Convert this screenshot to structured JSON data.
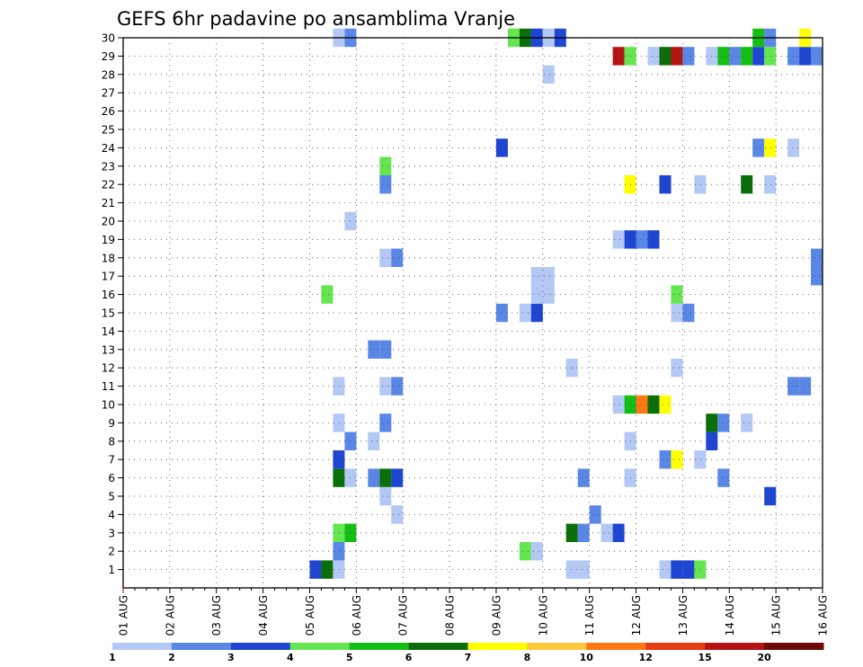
{
  "chart_data": {
    "type": "heatmap",
    "title": "GEFS 6hr padavine po ansamblima Vranje",
    "xlabel": "",
    "ylabel": "",
    "x_tick_labels": [
      "01 AUG",
      "02 AUG",
      "03 AUG",
      "04 AUG",
      "05 AUG",
      "06 AUG",
      "07 AUG",
      "08 AUG",
      "09 AUG",
      "10 AUG",
      "11 AUG",
      "12 AUG",
      "13 AUG",
      "14 AUG",
      "15 AUG",
      "16 AUG"
    ],
    "x_range_days": [
      1,
      16
    ],
    "step_hours": 6,
    "y_tick_labels": [
      "1",
      "2",
      "3",
      "4",
      "5",
      "6",
      "7",
      "8",
      "9",
      "10",
      "11",
      "12",
      "13",
      "14",
      "15",
      "16",
      "17",
      "18",
      "19",
      "20",
      "21",
      "22",
      "23",
      "24",
      "25",
      "26",
      "27",
      "28",
      "29",
      "30"
    ],
    "y_range": [
      0,
      30
    ],
    "grid": true,
    "colorbar": {
      "placement": "bottom",
      "labels": [
        "1",
        "2",
        "3",
        "4",
        "5",
        "6",
        "7",
        "8",
        "10",
        "12",
        "15",
        "20"
      ],
      "colors": [
        "#b4c8f5",
        "#5a87e6",
        "#1e46d2",
        "#64e650",
        "#14be14",
        "#0a6e0a",
        "#ffff00",
        "#ffc83c",
        "#ff7814",
        "#e63c14",
        "#b41414",
        "#6e0a0a"
      ]
    },
    "cells": [
      {
        "member": 1,
        "day": 5.0,
        "v": 3.5
      },
      {
        "member": 1,
        "day": 5.25,
        "v": 6.5
      },
      {
        "member": 1,
        "day": 5.5,
        "v": 1.5
      },
      {
        "member": 1,
        "day": 10.5,
        "v": 1.5
      },
      {
        "member": 1,
        "day": 10.75,
        "v": 1.5
      },
      {
        "member": 1,
        "day": 12.5,
        "v": 1.5
      },
      {
        "member": 1,
        "day": 12.75,
        "v": 3.5
      },
      {
        "member": 1,
        "day": 13.0,
        "v": 3.5
      },
      {
        "member": 1,
        "day": 13.25,
        "v": 4.5
      },
      {
        "member": 2,
        "day": 5.5,
        "v": 2.5
      },
      {
        "member": 2,
        "day": 9.5,
        "v": 4.5
      },
      {
        "member": 2,
        "day": 9.75,
        "v": 1.5
      },
      {
        "member": 3,
        "day": 5.5,
        "v": 4.5
      },
      {
        "member": 3,
        "day": 5.75,
        "v": 5.5
      },
      {
        "member": 3,
        "day": 10.5,
        "v": 6.5
      },
      {
        "member": 3,
        "day": 10.75,
        "v": 2.5
      },
      {
        "member": 3,
        "day": 11.25,
        "v": 1.5
      },
      {
        "member": 3,
        "day": 11.5,
        "v": 3.5
      },
      {
        "member": 4,
        "day": 6.75,
        "v": 1.5
      },
      {
        "member": 4,
        "day": 11.0,
        "v": 2.5
      },
      {
        "member": 5,
        "day": 6.5,
        "v": 1.5
      },
      {
        "member": 5,
        "day": 14.75,
        "v": 3.5
      },
      {
        "member": 6,
        "day": 5.5,
        "v": 6.5
      },
      {
        "member": 6,
        "day": 5.75,
        "v": 1.5
      },
      {
        "member": 6,
        "day": 6.25,
        "v": 2.5
      },
      {
        "member": 6,
        "day": 6.5,
        "v": 6.5
      },
      {
        "member": 6,
        "day": 6.75,
        "v": 3.5
      },
      {
        "member": 6,
        "day": 10.75,
        "v": 2.5
      },
      {
        "member": 6,
        "day": 11.75,
        "v": 1.5
      },
      {
        "member": 6,
        "day": 13.75,
        "v": 2.5
      },
      {
        "member": 7,
        "day": 5.5,
        "v": 3.5
      },
      {
        "member": 7,
        "day": 12.5,
        "v": 2.5
      },
      {
        "member": 7,
        "day": 12.75,
        "v": 7.5
      },
      {
        "member": 7,
        "day": 13.25,
        "v": 1.5
      },
      {
        "member": 8,
        "day": 5.75,
        "v": 2.5
      },
      {
        "member": 8,
        "day": 6.25,
        "v": 1.5
      },
      {
        "member": 8,
        "day": 11.75,
        "v": 1.5
      },
      {
        "member": 8,
        "day": 13.5,
        "v": 3.5
      },
      {
        "member": 9,
        "day": 5.5,
        "v": 1.5
      },
      {
        "member": 9,
        "day": 6.5,
        "v": 2.5
      },
      {
        "member": 9,
        "day": 13.5,
        "v": 6.5
      },
      {
        "member": 9,
        "day": 13.75,
        "v": 2.5
      },
      {
        "member": 9,
        "day": 14.25,
        "v": 1.5
      },
      {
        "member": 10,
        "day": 11.5,
        "v": 1.5
      },
      {
        "member": 10,
        "day": 11.75,
        "v": 5.5
      },
      {
        "member": 10,
        "day": 12.0,
        "v": 11
      },
      {
        "member": 10,
        "day": 12.25,
        "v": 6.5
      },
      {
        "member": 10,
        "day": 12.5,
        "v": 7.5
      },
      {
        "member": 11,
        "day": 5.5,
        "v": 1.5
      },
      {
        "member": 11,
        "day": 6.5,
        "v": 1.5
      },
      {
        "member": 11,
        "day": 6.75,
        "v": 2.5
      },
      {
        "member": 11,
        "day": 15.25,
        "v": 2.5
      },
      {
        "member": 11,
        "day": 15.5,
        "v": 2.5
      },
      {
        "member": 12,
        "day": 10.5,
        "v": 1.5
      },
      {
        "member": 12,
        "day": 12.75,
        "v": 1.5
      },
      {
        "member": 13,
        "day": 6.25,
        "v": 2.5
      },
      {
        "member": 13,
        "day": 6.5,
        "v": 2.5
      },
      {
        "member": 15,
        "day": 9.0,
        "v": 2.5
      },
      {
        "member": 15,
        "day": 9.5,
        "v": 1.5
      },
      {
        "member": 15,
        "day": 9.75,
        "v": 3.5
      },
      {
        "member": 15,
        "day": 12.75,
        "v": 1.5
      },
      {
        "member": 15,
        "day": 13.0,
        "v": 2.5
      },
      {
        "member": 16,
        "day": 5.25,
        "v": 4.5
      },
      {
        "member": 16,
        "day": 9.75,
        "v": 1.5
      },
      {
        "member": 16,
        "day": 10.0,
        "v": 1.5
      },
      {
        "member": 16,
        "day": 12.75,
        "v": 4.5
      },
      {
        "member": 17,
        "day": 9.75,
        "v": 1.5
      },
      {
        "member": 17,
        "day": 10.0,
        "v": 1.5
      },
      {
        "member": 17,
        "day": 15.75,
        "v": 2.5
      },
      {
        "member": 18,
        "day": 6.5,
        "v": 1.5
      },
      {
        "member": 18,
        "day": 6.75,
        "v": 2.5
      },
      {
        "member": 18,
        "day": 15.75,
        "v": 2.5
      },
      {
        "member": 19,
        "day": 11.5,
        "v": 1.5
      },
      {
        "member": 19,
        "day": 11.75,
        "v": 3.5
      },
      {
        "member": 19,
        "day": 12.0,
        "v": 2.5
      },
      {
        "member": 19,
        "day": 12.25,
        "v": 3.5
      },
      {
        "member": 20,
        "day": 5.75,
        "v": 1.5
      },
      {
        "member": 22,
        "day": 6.5,
        "v": 2.5
      },
      {
        "member": 22,
        "day": 11.75,
        "v": 7.5
      },
      {
        "member": 22,
        "day": 12.5,
        "v": 3.5
      },
      {
        "member": 22,
        "day": 13.25,
        "v": 1.5
      },
      {
        "member": 22,
        "day": 14.25,
        "v": 6.5
      },
      {
        "member": 22,
        "day": 14.75,
        "v": 1.5
      },
      {
        "member": 23,
        "day": 6.5,
        "v": 4.5
      },
      {
        "member": 24,
        "day": 9.0,
        "v": 3.5
      },
      {
        "member": 24,
        "day": 14.5,
        "v": 2.5
      },
      {
        "member": 24,
        "day": 14.75,
        "v": 7.5
      },
      {
        "member": 24,
        "day": 15.25,
        "v": 1.5
      },
      {
        "member": 28,
        "day": 10.0,
        "v": 1.5
      },
      {
        "member": 29,
        "day": 11.5,
        "v": 17
      },
      {
        "member": 29,
        "day": 11.75,
        "v": 4.5
      },
      {
        "member": 29,
        "day": 12.25,
        "v": 1.5
      },
      {
        "member": 29,
        "day": 12.5,
        "v": 6.5
      },
      {
        "member": 29,
        "day": 12.75,
        "v": 17
      },
      {
        "member": 29,
        "day": 13.0,
        "v": 2.5
      },
      {
        "member": 29,
        "day": 13.5,
        "v": 1.5
      },
      {
        "member": 29,
        "day": 13.75,
        "v": 5.5
      },
      {
        "member": 29,
        "day": 14.0,
        "v": 2.5
      },
      {
        "member": 29,
        "day": 14.25,
        "v": 5.5
      },
      {
        "member": 29,
        "day": 14.5,
        "v": 3.5
      },
      {
        "member": 29,
        "day": 14.75,
        "v": 4.5
      },
      {
        "member": 29,
        "day": 15.25,
        "v": 2.5
      },
      {
        "member": 29,
        "day": 15.5,
        "v": 3.5
      },
      {
        "member": 29,
        "day": 15.75,
        "v": 2.5
      },
      {
        "member": 30,
        "day": 5.5,
        "v": 1.5
      },
      {
        "member": 30,
        "day": 5.75,
        "v": 2.5
      },
      {
        "member": 30,
        "day": 9.25,
        "v": 4.5
      },
      {
        "member": 30,
        "day": 9.5,
        "v": 6.5
      },
      {
        "member": 30,
        "day": 9.75,
        "v": 3.5
      },
      {
        "member": 30,
        "day": 10.0,
        "v": 1.5
      },
      {
        "member": 30,
        "day": 10.25,
        "v": 3.5
      },
      {
        "member": 30,
        "day": 14.5,
        "v": 5.5
      },
      {
        "member": 30,
        "day": 14.75,
        "v": 2.5
      },
      {
        "member": 30,
        "day": 15.5,
        "v": 7.5
      }
    ]
  }
}
